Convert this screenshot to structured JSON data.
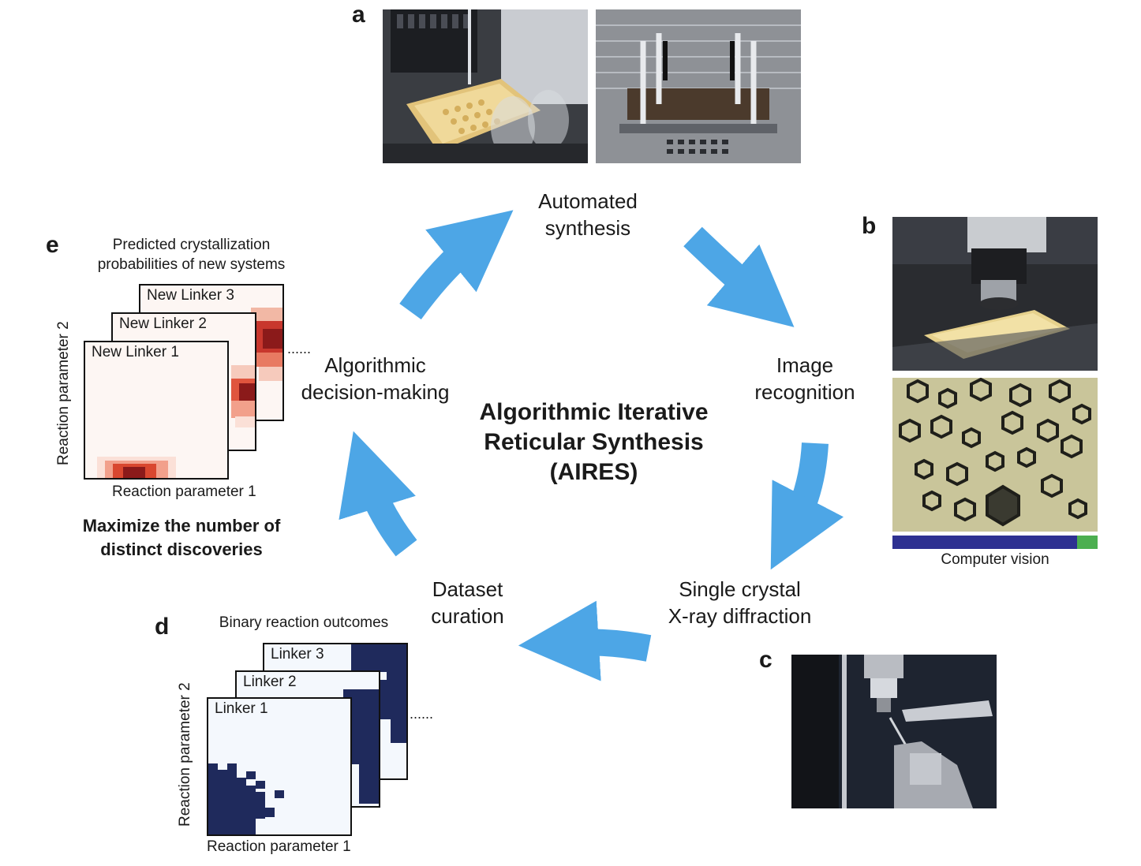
{
  "panels": {
    "a": "a",
    "b": "b",
    "c": "c",
    "d": "d",
    "e": "e"
  },
  "cycle": {
    "automated_synthesis": [
      "Automated",
      "synthesis"
    ],
    "image_recognition": [
      "Image",
      "recognition"
    ],
    "scxrd": [
      "Single crystal",
      "X-ray diffraction"
    ],
    "dataset_curation": [
      "Dataset",
      "curation"
    ],
    "decision_making": [
      "Algorithmic",
      "decision-making"
    ]
  },
  "center": [
    "Algorithmic Iterative",
    "Reticular Synthesis",
    "(AIRES)"
  ],
  "panel_b": {
    "caption": "Computer vision",
    "bar_colors": {
      "main": "#2e3191",
      "accent": "#4caf50"
    },
    "accent_fraction": 0.1
  },
  "panel_d": {
    "title": "Binary reaction outcomes",
    "linkers": [
      "Linker 3",
      "Linker 2",
      "Linker 1"
    ],
    "xlabel": "Reaction parameter 1",
    "ylabel": "Reaction parameter 2",
    "ellipsis": "......"
  },
  "panel_e": {
    "title": [
      "Predicted crystallization",
      "probabilities of new systems"
    ],
    "linkers": [
      "New Linker 3",
      "New Linker 2",
      "New Linker 1"
    ],
    "xlabel": "Reaction parameter 1",
    "ylabel": "Reaction parameter 2",
    "ellipsis": "......",
    "note": [
      "Maximize the number of",
      "distinct discoveries"
    ]
  },
  "colors": {
    "arrow": "#4da6e6",
    "navy": "#1f2a5c",
    "heat_dark": "#8b1a1a",
    "heat_light": "#fdf6f3"
  }
}
